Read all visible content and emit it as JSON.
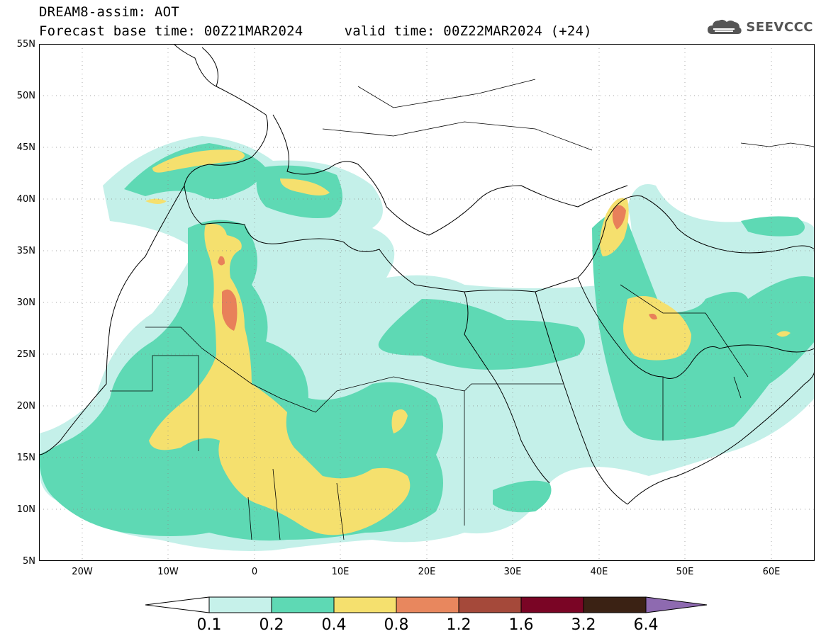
{
  "title": {
    "line1": "DREAM8-assim: AOT",
    "line2": "Forecast base time: 00Z21MAR2024     valid time: 00Z22MAR2024 (+24)"
  },
  "logo": {
    "text": "SEEVCCC",
    "icon": "cloud-icon"
  },
  "map": {
    "lon_range": [
      -25,
      65
    ],
    "lat_range": [
      5,
      55
    ],
    "lat_ticks": [
      "55N",
      "50N",
      "45N",
      "40N",
      "35N",
      "30N",
      "25N",
      "20N",
      "15N",
      "10N",
      "5N"
    ],
    "lon_ticks": [
      "20W",
      "10W",
      "0",
      "10E",
      "20E",
      "30E",
      "40E",
      "50E",
      "60E"
    ],
    "fields": [
      {
        "level": "0.1-0.2",
        "color": "#c4f0e9"
      },
      {
        "level": "0.2-0.4",
        "color": "#5ed9b4"
      },
      {
        "level": "0.4-0.8",
        "color": "#f5e06e"
      },
      {
        "level": "0.8-1.2",
        "color": "#e8805a"
      }
    ]
  },
  "colorbar": {
    "labels": [
      "0.1",
      "0.2",
      "0.4",
      "0.8",
      "1.2",
      "1.6",
      "3.2",
      "6.4"
    ],
    "colors": [
      "#c6f1ea",
      "#5ed9b4",
      "#f5e06e",
      "#e8875e",
      "#a5493a",
      "#7a0525",
      "#3b2214"
    ],
    "under_color": "#ffffff",
    "over_color": "#8e6ab0"
  }
}
